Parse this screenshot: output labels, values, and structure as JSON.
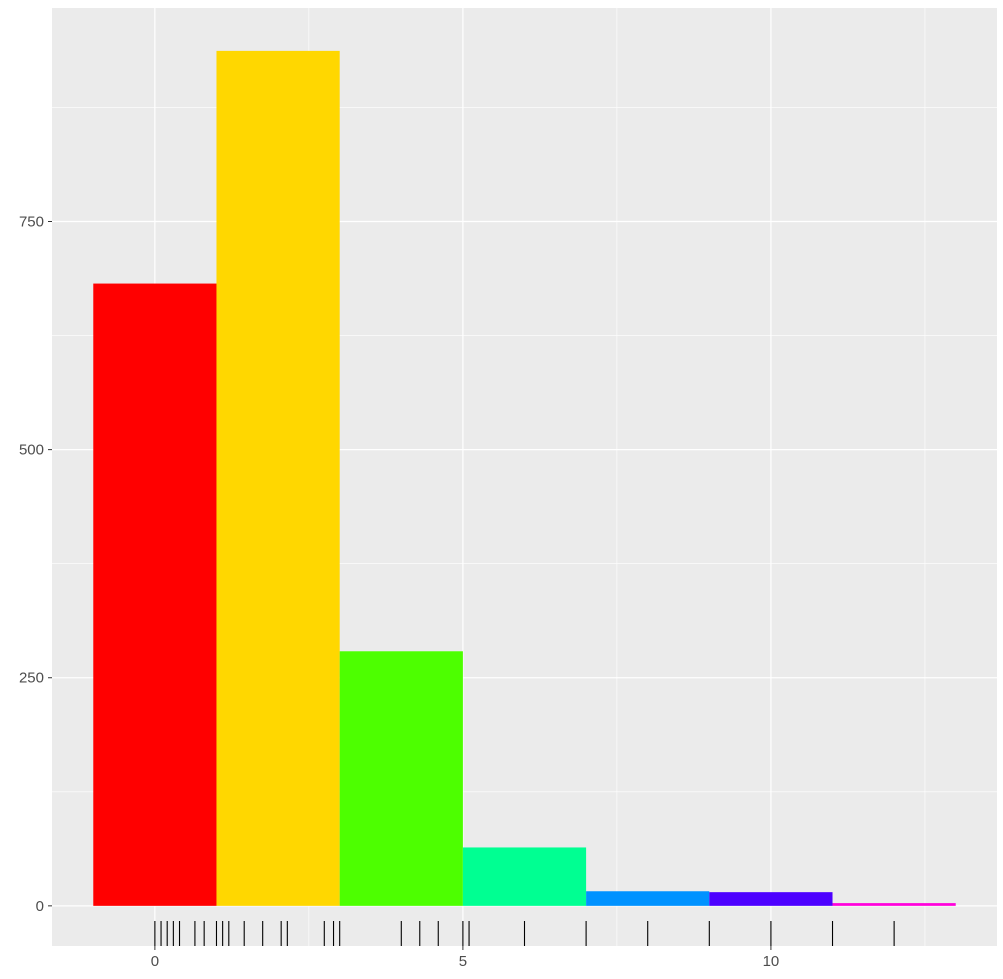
{
  "chart_data": {
    "type": "bar",
    "title": "",
    "xlabel": "",
    "ylabel": "",
    "bars": [
      {
        "x_start": -1,
        "x_end": 1,
        "value": 682,
        "color": "#FF0000"
      },
      {
        "x_start": 1,
        "x_end": 3,
        "value": 937,
        "color": "#FFD700"
      },
      {
        "x_start": 3,
        "x_end": 5,
        "value": 279,
        "color": "#4DFF00"
      },
      {
        "x_start": 5,
        "x_end": 7,
        "value": 64,
        "color": "#00FF92"
      },
      {
        "x_start": 7,
        "x_end": 9,
        "value": 16,
        "color": "#0092FF"
      },
      {
        "x_start": 9,
        "x_end": 11,
        "value": 15,
        "color": "#4D00FF"
      },
      {
        "x_start": 11,
        "x_end": 13,
        "value": 3,
        "color": "#FF00DB"
      }
    ],
    "rug_x": [
      0,
      0.1,
      0.2,
      0.3,
      0.4,
      0.65,
      0.8,
      1.0,
      1.1,
      1.2,
      1.45,
      1.75,
      2.05,
      2.15,
      2.75,
      2.9,
      3.0,
      4.0,
      4.3,
      4.6,
      5.0,
      5.1,
      6.0,
      7.0,
      8.0,
      9.0,
      10.0,
      11.0,
      12.0
    ],
    "xlim": [
      -1.67,
      13.67
    ],
    "ylim": [
      -44,
      984
    ],
    "x_ticks": [
      0,
      5,
      10
    ],
    "x_tick_labels": [
      "0",
      "5",
      "10"
    ],
    "y_ticks": [
      0,
      250,
      500,
      750
    ],
    "y_tick_labels": [
      "0",
      "250",
      "500",
      "750"
    ],
    "grid": true,
    "panel_background": "#EBEBEB",
    "grid_color": "#FFFFFF",
    "legend": "none"
  }
}
